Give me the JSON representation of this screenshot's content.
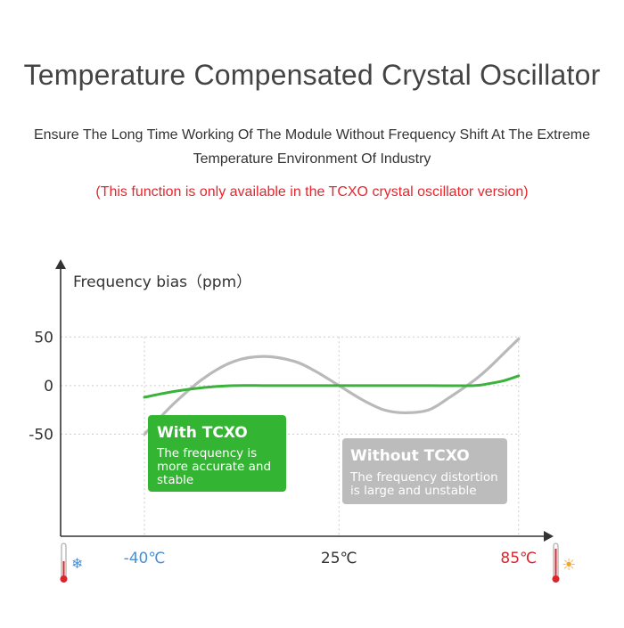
{
  "header": {
    "title": "Temperature Compensated Crystal Oscillator",
    "subtitle_line1": "Ensure The Long Time Working Of The Module Without Frequency Shift At The Extreme",
    "subtitle_line2": "Temperature Environment Of Industry",
    "note": "(This function is only available in the TCXO crystal oscillator version)"
  },
  "chart_data": {
    "type": "line",
    "ylabel": "Frequency bias（ppm）",
    "y_ticks": [
      "50",
      "0",
      "-50"
    ],
    "y_tick_values": [
      50,
      0,
      -50
    ],
    "ylim": [
      -155,
      130
    ],
    "xlim": [
      -68,
      94
    ],
    "x_ticks": [
      "-40℃",
      "25℃",
      "85℃"
    ],
    "x_tick_values": [
      -40,
      25,
      85
    ],
    "grid": true,
    "series": [
      {
        "name": "With TCXO",
        "color": "#3bb23b",
        "x": [
          -40,
          -30,
          -20,
          -10,
          0,
          10,
          25,
          40,
          55,
          70,
          75,
          80,
          85
        ],
        "y": [
          -12,
          -6,
          -2,
          0,
          0,
          0,
          0,
          0,
          0,
          0,
          2,
          5,
          10
        ]
      },
      {
        "name": "Without TCXO",
        "color": "#b9b9b9",
        "x": [
          -40,
          -30,
          -20,
          -10,
          0,
          10,
          17,
          25,
          33,
          40,
          47,
          55,
          62,
          70,
          75,
          80,
          85
        ],
        "y": [
          -50,
          -18,
          8,
          25,
          30,
          25,
          15,
          0,
          -15,
          -25,
          -28,
          -25,
          -12,
          5,
          18,
          33,
          48
        ]
      }
    ],
    "annotations": [
      {
        "title": "With TCXO",
        "text_line1": "The frequency is",
        "text_line2": "more accurate and",
        "text_line3": "stable",
        "color": "#33b533"
      },
      {
        "title": "Without TCXO",
        "text_line1": "The frequency distortion",
        "text_line2": "is large and unstable",
        "color": "#bcbcbc"
      }
    ],
    "icons": {
      "cold": "snowflake-icon",
      "hot": "sun-icon",
      "cold_color": "#4a90d9",
      "hot_color": "#f5a623",
      "thermometer_color": "#d9262c"
    },
    "x_tick_colors": [
      "#4a90d9",
      "#333333",
      "#d9262c"
    ]
  }
}
